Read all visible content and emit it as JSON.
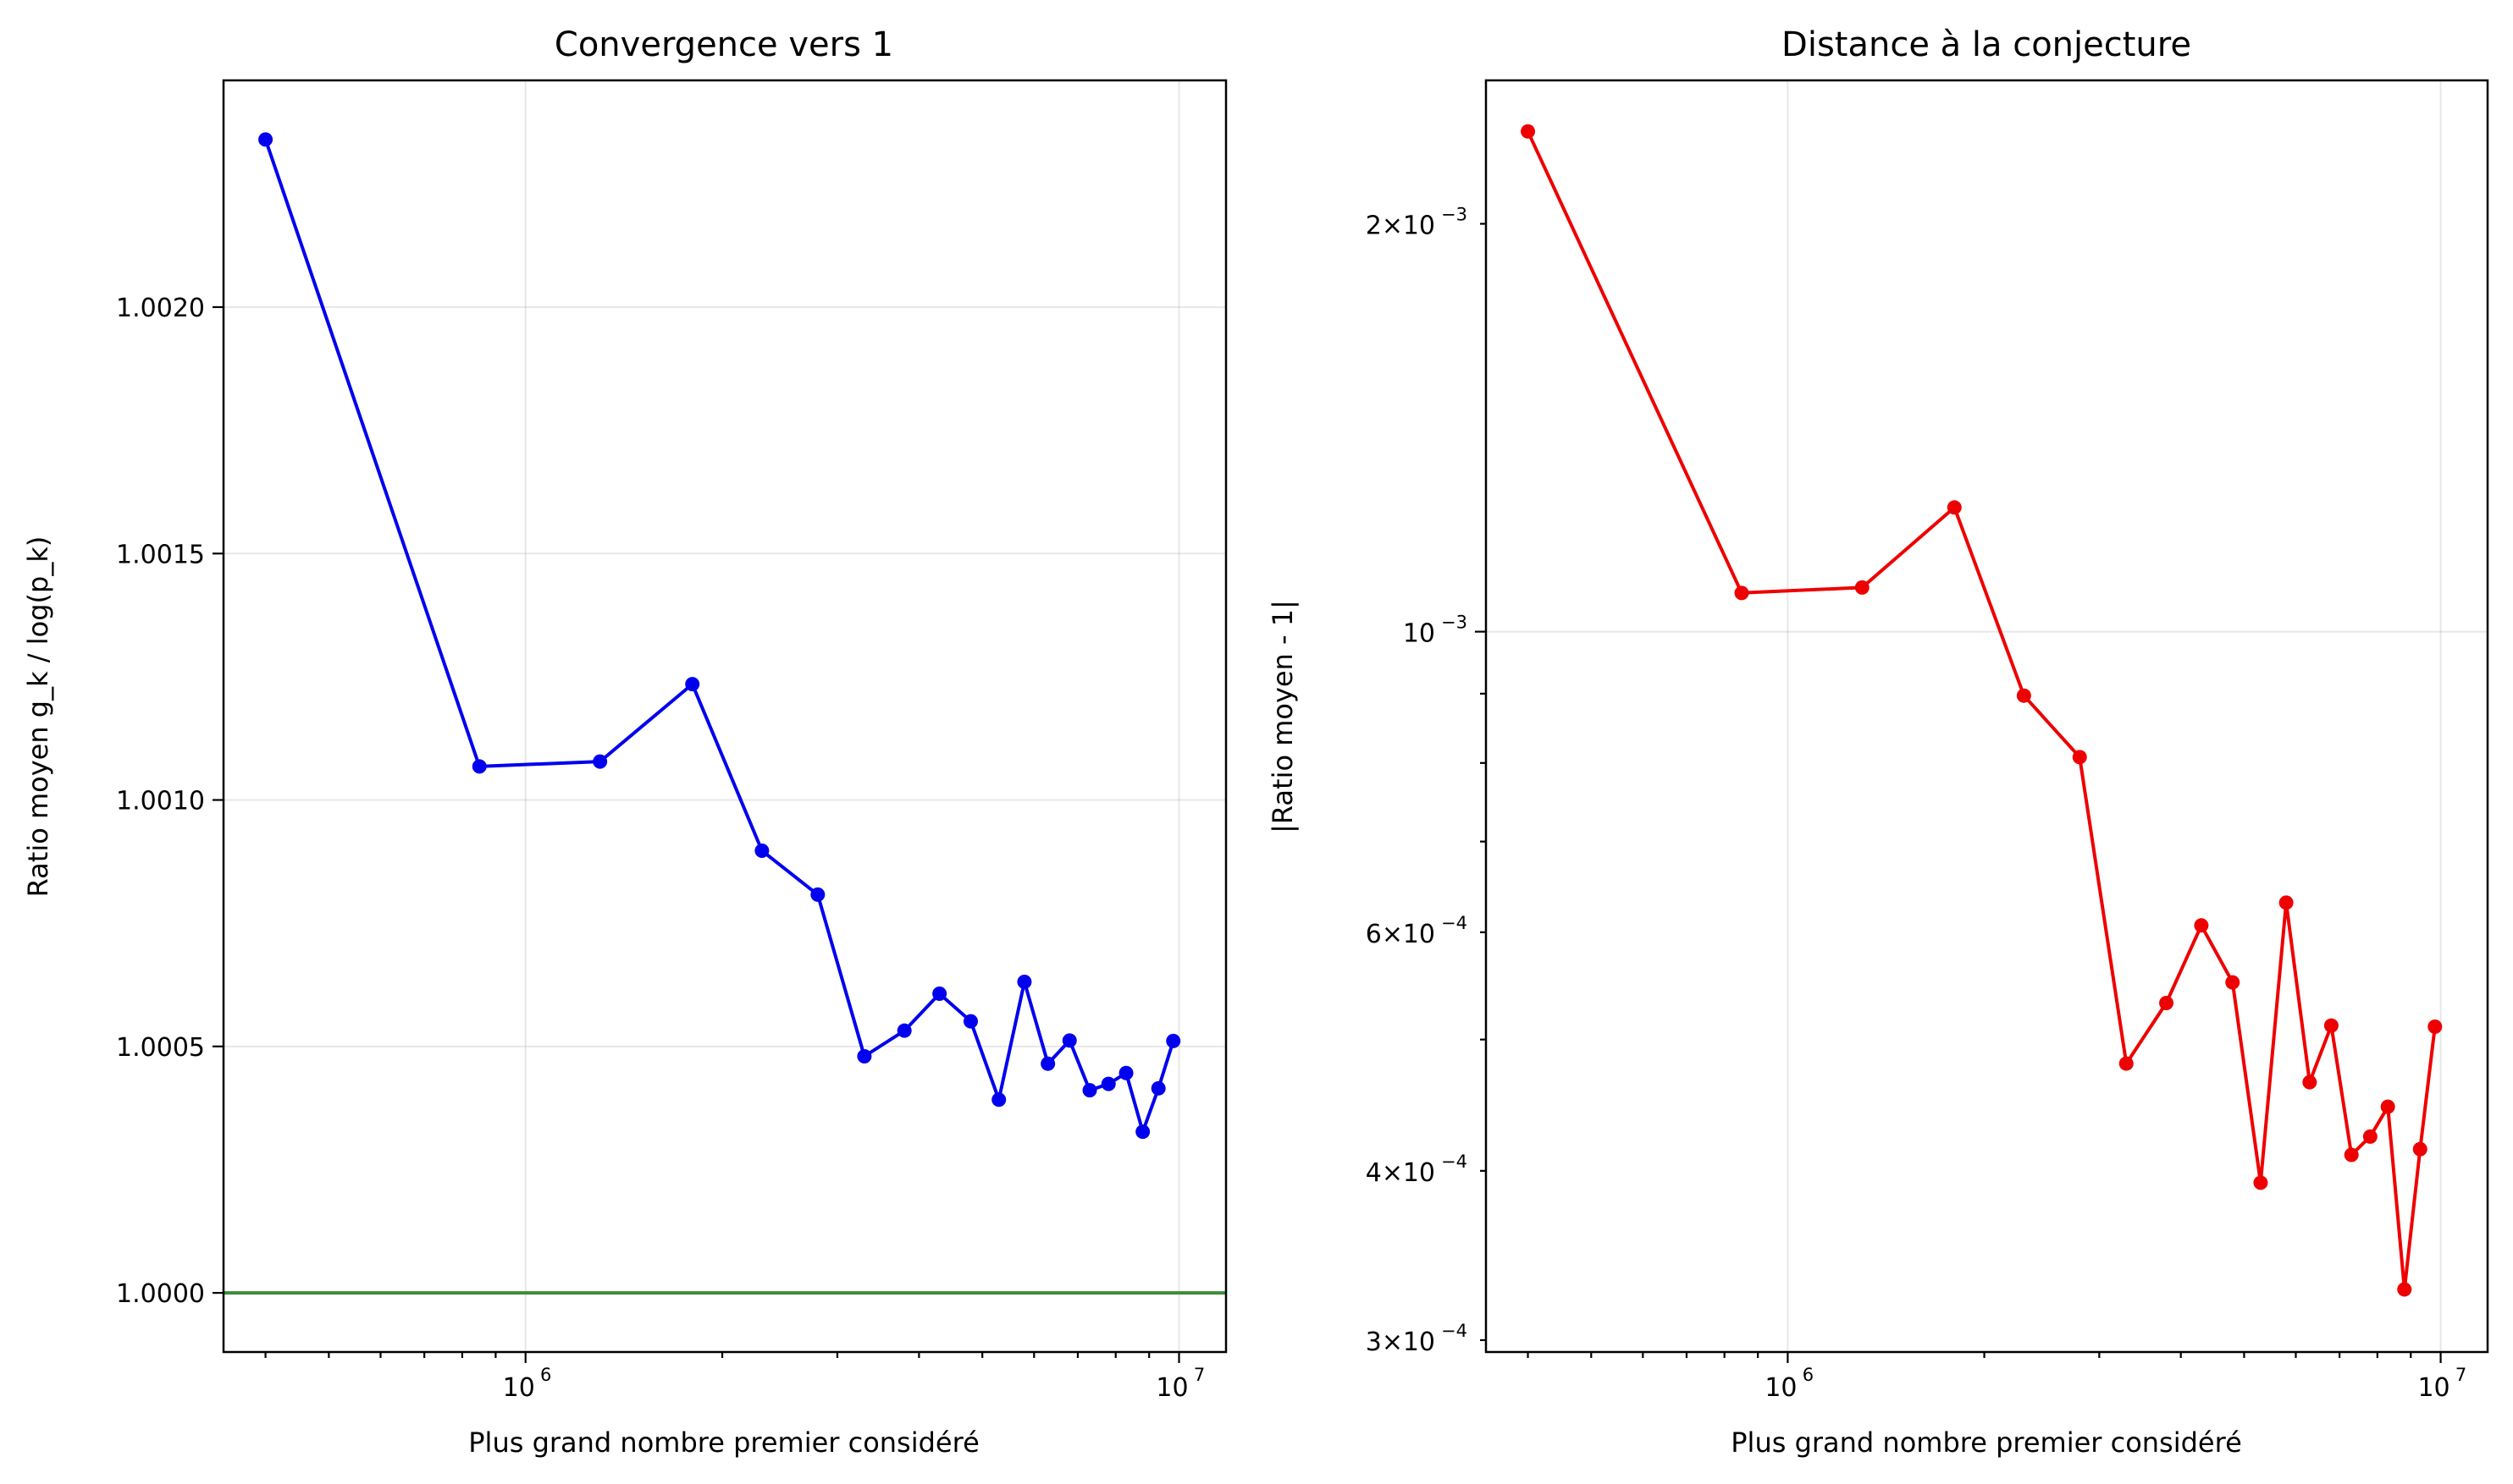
{
  "chart_data": [
    {
      "type": "line",
      "title": "Convergence vers 1",
      "xlabel": "Plus grand nombre premier considéré",
      "ylabel": "Ratio moyen g_k / log(p_k)",
      "xscale": "log",
      "yscale": "linear",
      "xlim": [
        345000,
        11800000
      ],
      "ylim": [
        0.99988,
        1.00246
      ],
      "grid": true,
      "x_ticks": [
        {
          "value": 1000000,
          "base": "10",
          "exp": "6"
        },
        {
          "value": 10000000,
          "base": "10",
          "exp": "7"
        }
      ],
      "y_ticks": [
        {
          "value": 1.0,
          "label": "1.0000"
        },
        {
          "value": 1.0005,
          "label": "1.0005"
        },
        {
          "value": 1.001,
          "label": "1.0010"
        },
        {
          "value": 1.0015,
          "label": "1.0015"
        },
        {
          "value": 1.002,
          "label": "1.0020"
        }
      ],
      "reference_line": {
        "y": 1.0,
        "color": "#3a8d3a"
      },
      "series": [
        {
          "color": "#0000ee",
          "x": [
            400000,
            850000,
            1300000,
            1800000,
            2300000,
            2800000,
            3300000,
            3800000,
            4300000,
            4800000,
            5300000,
            5800000,
            6300000,
            6800000,
            7300000,
            7800000,
            8300000,
            8800000,
            9300000,
            9800000
          ],
          "y": [
            1.00234,
            1.001068,
            1.001078,
            1.001235,
            1.000897,
            1.000808,
            1.00048,
            1.000532,
            1.000607,
            1.000551,
            1.000392,
            1.000631,
            1.000465,
            1.000512,
            1.000411,
            1.000424,
            1.000446,
            1.000327,
            1.000415,
            1.000511
          ]
        }
      ]
    },
    {
      "type": "line",
      "title": "Distance à la conjecture",
      "xlabel": "Plus grand nombre premier considéré",
      "ylabel": "|Ratio moyen - 1|",
      "xscale": "log",
      "yscale": "log",
      "xlim": [
        345000,
        11800000
      ],
      "ylim": [
        0.000294,
        0.002552
      ],
      "grid": true,
      "x_ticks": [
        {
          "value": 1000000,
          "base": "10",
          "exp": "6"
        },
        {
          "value": 10000000,
          "base": "10",
          "exp": "7"
        }
      ],
      "y_ticks": [
        {
          "value": 0.0003,
          "mant": "3",
          "base": "10",
          "exp": "−4"
        },
        {
          "value": 0.0004,
          "mant": "4",
          "base": "10",
          "exp": "−4"
        },
        {
          "value": 0.0006,
          "mant": "6",
          "base": "10",
          "exp": "−4"
        },
        {
          "value": 0.001,
          "mant": "",
          "base": "10",
          "exp": "−3"
        },
        {
          "value": 0.002,
          "mant": "2",
          "base": "10",
          "exp": "−3"
        }
      ],
      "series": [
        {
          "color": "#ee0000",
          "x": [
            400000,
            850000,
            1300000,
            1800000,
            2300000,
            2800000,
            3300000,
            3800000,
            4300000,
            4800000,
            5300000,
            5800000,
            6300000,
            6800000,
            7300000,
            7800000,
            8300000,
            8800000,
            9300000,
            9800000
          ],
          "y": [
            0.00234,
            0.001068,
            0.001078,
            0.001235,
            0.000897,
            0.000808,
            0.00048,
            0.000532,
            0.000607,
            0.000551,
            0.000392,
            0.000631,
            0.000465,
            0.000512,
            0.000411,
            0.000424,
            0.000446,
            0.000327,
            0.000415,
            0.000511
          ]
        }
      ]
    }
  ]
}
